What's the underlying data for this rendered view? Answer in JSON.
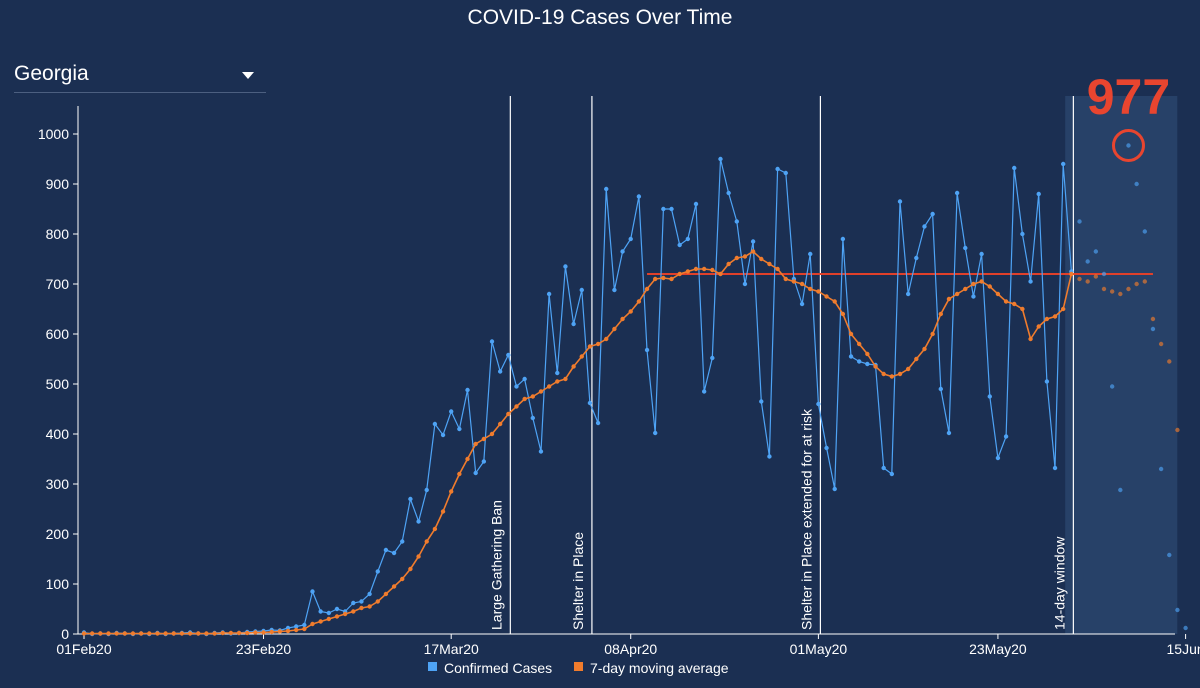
{
  "page": {
    "title": "COVID-19 Cases Over Time",
    "state_selector": {
      "selected": "Georgia"
    }
  },
  "colors": {
    "background": "#1b2f52",
    "confirmed": "#4ea3f5",
    "moving_average": "#f07c2d",
    "plateau_line": "#e0402a",
    "callout": "#e8452f",
    "window_band": "#2c4870"
  },
  "chart_data": {
    "type": "line",
    "title": "COVID-19 Cases Over Time",
    "xlabel": "",
    "ylabel": "",
    "ylim": [
      0,
      1000
    ],
    "y_ticks": [
      0,
      100,
      200,
      300,
      400,
      500,
      600,
      700,
      800,
      900,
      1000
    ],
    "x_start": "2020-02-01",
    "x_end": "2020-06-16",
    "x_tick_labels": [
      {
        "date": "2020-02-01",
        "label": "01Feb20"
      },
      {
        "date": "2020-02-23",
        "label": "23Feb20"
      },
      {
        "date": "2020-03-17",
        "label": "17Mar20"
      },
      {
        "date": "2020-04-08",
        "label": "08Apr20"
      },
      {
        "date": "2020-05-01",
        "label": "01May20"
      },
      {
        "date": "2020-05-23",
        "label": "23May20"
      },
      {
        "date": "2020-06-15",
        "label": "15Jun"
      }
    ],
    "grid": false,
    "legend_placement": "bottom-center",
    "series": [
      {
        "name": "Confirmed Cases",
        "color": "#4ea3f5",
        "x": [
          "2020-02-01",
          "2020-02-02",
          "2020-02-03",
          "2020-02-04",
          "2020-02-05",
          "2020-02-06",
          "2020-02-07",
          "2020-02-08",
          "2020-02-09",
          "2020-02-10",
          "2020-02-11",
          "2020-02-12",
          "2020-02-13",
          "2020-02-14",
          "2020-02-15",
          "2020-02-16",
          "2020-02-17",
          "2020-02-18",
          "2020-02-19",
          "2020-02-20",
          "2020-02-21",
          "2020-02-22",
          "2020-02-23",
          "2020-02-24",
          "2020-02-25",
          "2020-02-26",
          "2020-02-27",
          "2020-02-28",
          "2020-02-29",
          "2020-03-01",
          "2020-03-02",
          "2020-03-03",
          "2020-03-04",
          "2020-03-05",
          "2020-03-06",
          "2020-03-07",
          "2020-03-08",
          "2020-03-09",
          "2020-03-10",
          "2020-03-11",
          "2020-03-12",
          "2020-03-13",
          "2020-03-14",
          "2020-03-15",
          "2020-03-16",
          "2020-03-17",
          "2020-03-18",
          "2020-03-19",
          "2020-03-20",
          "2020-03-21",
          "2020-03-22",
          "2020-03-23",
          "2020-03-24",
          "2020-03-25",
          "2020-03-26",
          "2020-03-27",
          "2020-03-28",
          "2020-03-29",
          "2020-03-30",
          "2020-03-31",
          "2020-04-01",
          "2020-04-02",
          "2020-04-03",
          "2020-04-04",
          "2020-04-05",
          "2020-04-06",
          "2020-04-07",
          "2020-04-08",
          "2020-04-09",
          "2020-04-10",
          "2020-04-11",
          "2020-04-12",
          "2020-04-13",
          "2020-04-14",
          "2020-04-15",
          "2020-04-16",
          "2020-04-17",
          "2020-04-18",
          "2020-04-19",
          "2020-04-20",
          "2020-04-21",
          "2020-04-22",
          "2020-04-23",
          "2020-04-24",
          "2020-04-25",
          "2020-04-26",
          "2020-04-27",
          "2020-04-28",
          "2020-04-29",
          "2020-04-30",
          "2020-05-01",
          "2020-05-02",
          "2020-05-03",
          "2020-05-04",
          "2020-05-05",
          "2020-05-06",
          "2020-05-07",
          "2020-05-08",
          "2020-05-09",
          "2020-05-10",
          "2020-05-11",
          "2020-05-12",
          "2020-05-13",
          "2020-05-14",
          "2020-05-15",
          "2020-05-16",
          "2020-05-17",
          "2020-05-18",
          "2020-05-19",
          "2020-05-20",
          "2020-05-21",
          "2020-05-22",
          "2020-05-23",
          "2020-05-24",
          "2020-05-25",
          "2020-05-26",
          "2020-05-27",
          "2020-05-28",
          "2020-05-29",
          "2020-05-30",
          "2020-05-31",
          "2020-06-01"
        ],
        "y": [
          3,
          0,
          1,
          0,
          2,
          1,
          0,
          1,
          0,
          2,
          0,
          1,
          2,
          3,
          1,
          0,
          2,
          3,
          1,
          2,
          4,
          5,
          6,
          8,
          7,
          12,
          15,
          18,
          85,
          45,
          42,
          50,
          45,
          62,
          65,
          80,
          125,
          168,
          162,
          185,
          270,
          225,
          288,
          420,
          398,
          445,
          410,
          488,
          322,
          345,
          585,
          525,
          558,
          495,
          510,
          432,
          365,
          680,
          522,
          735,
          620,
          688,
          462,
          422,
          890,
          688,
          765,
          790,
          875,
          568,
          402,
          850,
          850,
          778,
          790,
          860,
          485,
          552,
          950,
          882,
          825,
          700,
          785,
          465,
          355,
          930,
          922,
          710,
          660,
          760,
          460,
          372,
          290,
          790,
          555,
          545,
          540,
          538,
          332,
          320,
          865,
          680,
          752,
          815,
          840,
          490,
          402,
          882,
          772,
          675,
          760,
          475,
          352,
          395,
          932,
          800,
          705,
          880,
          505,
          332,
          940,
          725
        ]
      },
      {
        "name": "7-day moving average",
        "color": "#f07c2d",
        "x": [
          "2020-02-01",
          "2020-02-02",
          "2020-02-03",
          "2020-02-04",
          "2020-02-05",
          "2020-02-06",
          "2020-02-07",
          "2020-02-08",
          "2020-02-09",
          "2020-02-10",
          "2020-02-11",
          "2020-02-12",
          "2020-02-13",
          "2020-02-14",
          "2020-02-15",
          "2020-02-16",
          "2020-02-17",
          "2020-02-18",
          "2020-02-19",
          "2020-02-20",
          "2020-02-21",
          "2020-02-22",
          "2020-02-23",
          "2020-02-24",
          "2020-02-25",
          "2020-02-26",
          "2020-02-27",
          "2020-02-28",
          "2020-02-29",
          "2020-03-01",
          "2020-03-02",
          "2020-03-03",
          "2020-03-04",
          "2020-03-05",
          "2020-03-06",
          "2020-03-07",
          "2020-03-08",
          "2020-03-09",
          "2020-03-10",
          "2020-03-11",
          "2020-03-12",
          "2020-03-13",
          "2020-03-14",
          "2020-03-15",
          "2020-03-16",
          "2020-03-17",
          "2020-03-18",
          "2020-03-19",
          "2020-03-20",
          "2020-03-21",
          "2020-03-22",
          "2020-03-23",
          "2020-03-24",
          "2020-03-25",
          "2020-03-26",
          "2020-03-27",
          "2020-03-28",
          "2020-03-29",
          "2020-03-30",
          "2020-03-31",
          "2020-04-01",
          "2020-04-02",
          "2020-04-03",
          "2020-04-04",
          "2020-04-05",
          "2020-04-06",
          "2020-04-07",
          "2020-04-08",
          "2020-04-09",
          "2020-04-10",
          "2020-04-11",
          "2020-04-12",
          "2020-04-13",
          "2020-04-14",
          "2020-04-15",
          "2020-04-16",
          "2020-04-17",
          "2020-04-18",
          "2020-04-19",
          "2020-04-20",
          "2020-04-21",
          "2020-04-22",
          "2020-04-23",
          "2020-04-24",
          "2020-04-25",
          "2020-04-26",
          "2020-04-27",
          "2020-04-28",
          "2020-04-29",
          "2020-04-30",
          "2020-05-01",
          "2020-05-02",
          "2020-05-03",
          "2020-05-04",
          "2020-05-05",
          "2020-05-06",
          "2020-05-07",
          "2020-05-08",
          "2020-05-09",
          "2020-05-10",
          "2020-05-11",
          "2020-05-12",
          "2020-05-13",
          "2020-05-14",
          "2020-05-15",
          "2020-05-16",
          "2020-05-17",
          "2020-05-18",
          "2020-05-19",
          "2020-05-20",
          "2020-05-21",
          "2020-05-22",
          "2020-05-23",
          "2020-05-24",
          "2020-05-25",
          "2020-05-26",
          "2020-05-27",
          "2020-05-28",
          "2020-05-29",
          "2020-05-30",
          "2020-05-31",
          "2020-06-01"
        ],
        "y": [
          1,
          1,
          1,
          1,
          1,
          1,
          1,
          1,
          1,
          1,
          1,
          1,
          1,
          1,
          1,
          1,
          1,
          2,
          2,
          2,
          2,
          3,
          3,
          4,
          5,
          6,
          8,
          10,
          20,
          25,
          30,
          35,
          40,
          45,
          52,
          55,
          65,
          80,
          95,
          110,
          130,
          155,
          185,
          210,
          245,
          285,
          320,
          350,
          380,
          390,
          400,
          420,
          440,
          455,
          470,
          475,
          485,
          495,
          505,
          510,
          535,
          555,
          575,
          580,
          590,
          610,
          630,
          645,
          665,
          690,
          710,
          712,
          710,
          720,
          725,
          730,
          730,
          728,
          720,
          740,
          752,
          755,
          765,
          750,
          740,
          730,
          710,
          705,
          700,
          690,
          685,
          675,
          665,
          640,
          600,
          580,
          560,
          535,
          520,
          515,
          520,
          530,
          550,
          570,
          600,
          640,
          670,
          680,
          690,
          700,
          705,
          695,
          680,
          665,
          660,
          650,
          590,
          615,
          630,
          635,
          650,
          720
        ]
      }
    ],
    "projection": {
      "note": "Faded dots in shaded 14-day window",
      "confirmed": {
        "x": [
          "2020-06-02",
          "2020-06-03",
          "2020-06-04",
          "2020-06-05",
          "2020-06-06",
          "2020-06-07",
          "2020-06-08",
          "2020-06-09",
          "2020-06-10",
          "2020-06-11",
          "2020-06-12",
          "2020-06-13",
          "2020-06-14",
          "2020-06-15"
        ],
        "y": [
          825,
          745,
          765,
          720,
          495,
          288,
          977,
          900,
          805,
          610,
          330,
          158,
          48,
          12
        ]
      },
      "moving_average": {
        "x": [
          "2020-06-02",
          "2020-06-03",
          "2020-06-04",
          "2020-06-05",
          "2020-06-06",
          "2020-06-07",
          "2020-06-08",
          "2020-06-09",
          "2020-06-10",
          "2020-06-11",
          "2020-06-12",
          "2020-06-13",
          "2020-06-14"
        ],
        "y": [
          710,
          705,
          715,
          690,
          685,
          680,
          690,
          700,
          705,
          630,
          580,
          545,
          408
        ]
      }
    },
    "plateau_line": {
      "x_start": "2020-04-10",
      "x_end": "2020-06-11",
      "y": 720
    },
    "events": [
      {
        "date": "2020-03-24",
        "label": "Large Gathering Ban"
      },
      {
        "date": "2020-04-03",
        "label": "Shelter in Place"
      },
      {
        "date": "2020-05-01",
        "label": "Shelter in Place extended for at risk"
      },
      {
        "date": "2020-06-01",
        "label": "14-day window"
      }
    ],
    "highlight_window": {
      "x_start": "2020-05-31",
      "x_end": "2020-06-13"
    },
    "callout": {
      "date": "2020-06-08",
      "value": 977,
      "label": "977"
    },
    "legend": [
      {
        "label": "Confirmed Cases",
        "color": "#4ea3f5"
      },
      {
        "label": "7-day moving average",
        "color": "#f07c2d"
      }
    ]
  }
}
